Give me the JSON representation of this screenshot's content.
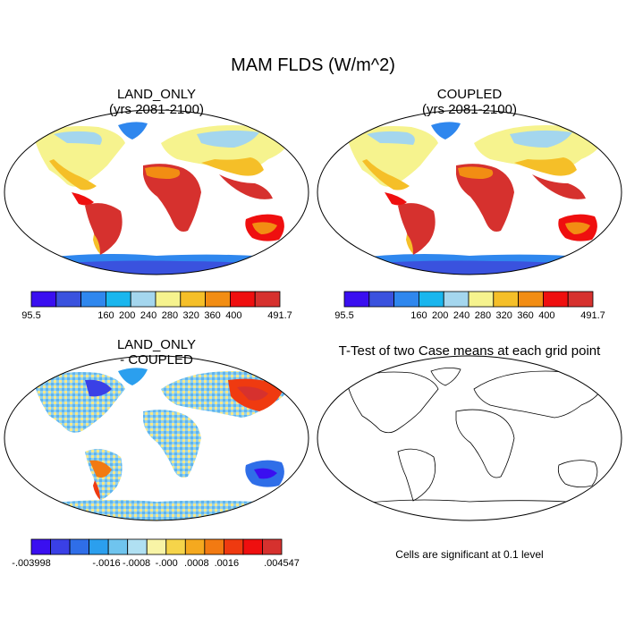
{
  "title": "MAM FLDS (W/m^2)",
  "chart_data": [
    {
      "type": "heatmap",
      "title": "LAND_ONLY",
      "subtitle": "(yrs 2081-2100)",
      "colorbar": {
        "labels": [
          "95.5",
          "160",
          "200",
          "240",
          "280",
          "320",
          "360",
          "400",
          "491.7"
        ],
        "colors": [
          "#3a0ff0",
          "#3a52de",
          "#2f87ee",
          "#19b6ee",
          "#a4d6ee",
          "#f6f38e",
          "#f5bf28",
          "#f28d13",
          "#ef0f0f",
          "#d6312e"
        ]
      }
    },
    {
      "type": "heatmap",
      "title": "COUPLED",
      "subtitle": "(yrs 2081-2100)",
      "colorbar": {
        "labels": [
          "95.5",
          "160",
          "200",
          "240",
          "280",
          "320",
          "360",
          "400",
          "491.7"
        ],
        "colors": [
          "#3a0ff0",
          "#3a52de",
          "#2f87ee",
          "#19b6ee",
          "#a4d6ee",
          "#f6f38e",
          "#f5bf28",
          "#f28d13",
          "#ef0f0f",
          "#d6312e"
        ]
      }
    },
    {
      "type": "heatmap",
      "title": "LAND_ONLY",
      "subtitle": "- COUPLED",
      "colorbar": {
        "labels": [
          "-.003998",
          "-.0016",
          "-.0008",
          "-.000",
          ".0008",
          ".0016",
          ".004547"
        ],
        "colors": [
          "#3a0ff0",
          "#3a40e6",
          "#2f6ee8",
          "#2b9fee",
          "#6fc4ee",
          "#b0e0f2",
          "#f8f4a6",
          "#f6d44a",
          "#f5a91f",
          "#f27a12",
          "#ef3a10",
          "#ef0f0f",
          "#d6312e"
        ]
      }
    },
    {
      "type": "heatmap",
      "title": "T-Test of two Case means at each grid point",
      "note": "Cells are significant at 0.1 level"
    }
  ]
}
